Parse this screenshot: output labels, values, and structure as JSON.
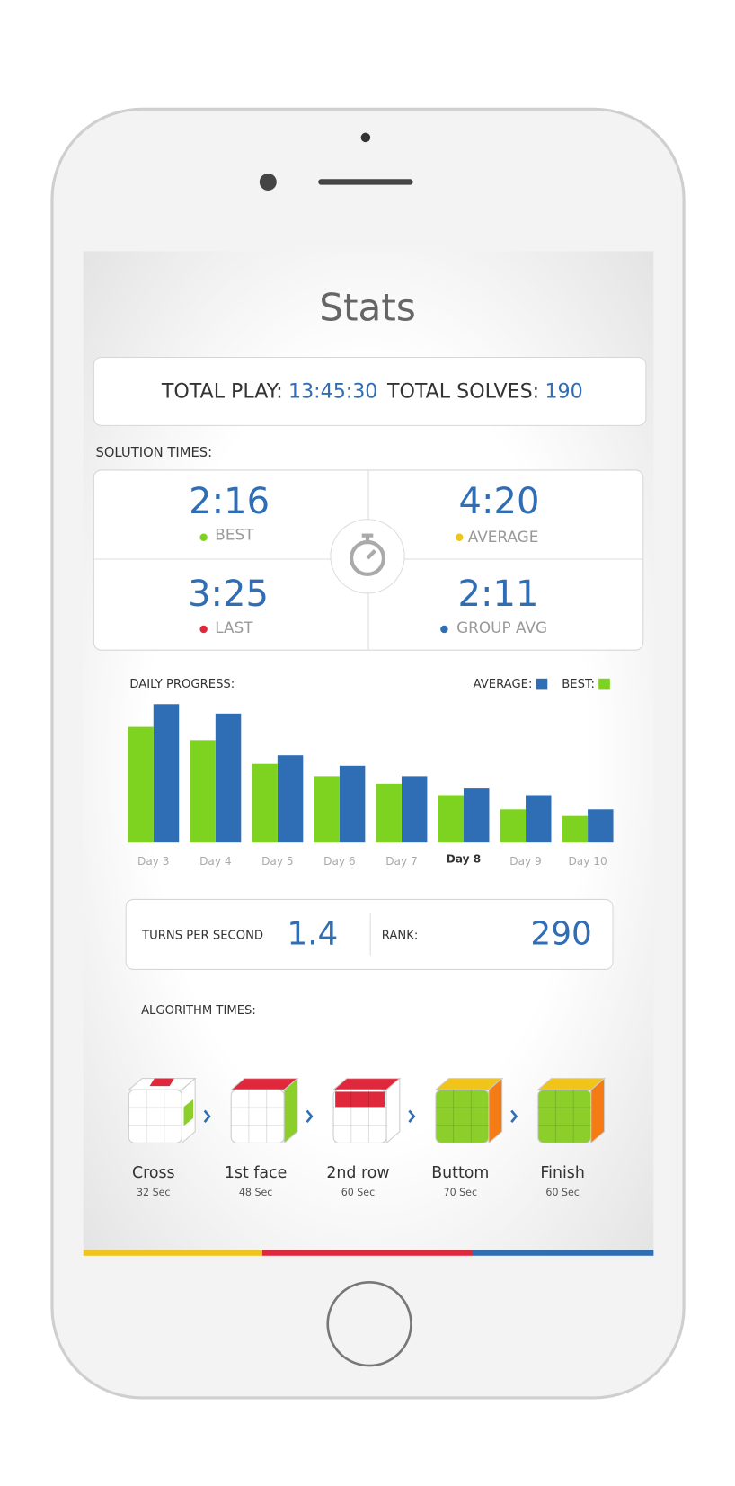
{
  "header": {
    "title": "Stats"
  },
  "summary": {
    "total_play_label": "TOTAL PLAY:",
    "total_play": "13:45:30",
    "total_solves_label": "TOTAL SOLVES:",
    "total_solves": "190"
  },
  "solution_times": {
    "title": "SOLUTION TIMES:",
    "items": [
      {
        "value": "2:16",
        "label": "BEST"
      },
      {
        "value": "4:20",
        "label": "AVERAGE"
      },
      {
        "value": "3:25",
        "label": "LAST"
      },
      {
        "value": "2:11",
        "label": "GROUP AVG"
      }
    ]
  },
  "chart_data": {
    "type": "bar",
    "title": "DAILY PROGRESS:",
    "categories": [
      "Day 3",
      "Day 4",
      "Day 5",
      "Day 6",
      "Day 7",
      "Day 8",
      "Day 9",
      "Day 10"
    ],
    "series": [
      {
        "name": "AVERAGE:",
        "color": "#2f6db5",
        "values": [
          146,
          136,
          92,
          81,
          70,
          57,
          50,
          35
        ]
      },
      {
        "name": "BEST:",
        "color": "#7ed321",
        "values": [
          122,
          108,
          83,
          70,
          62,
          50,
          35,
          28
        ]
      }
    ],
    "ylim": [
      0,
      150
    ]
  },
  "metrics": {
    "turns_label": "TURNS PER SECOND",
    "turns": "1.4",
    "rank_label": "RANK:",
    "rank": "290"
  },
  "algorithm_times": {
    "title": "ALGORITHM TIMES:",
    "steps": [
      {
        "name": "Cross",
        "time": "32 Sec"
      },
      {
        "name": "1st face",
        "time": "48 Sec"
      },
      {
        "name": "2nd row",
        "time": "60 Sec"
      },
      {
        "name": "Buttom",
        "time": "70 Sec"
      },
      {
        "name": "Finish",
        "time": "60 Sec"
      }
    ]
  }
}
